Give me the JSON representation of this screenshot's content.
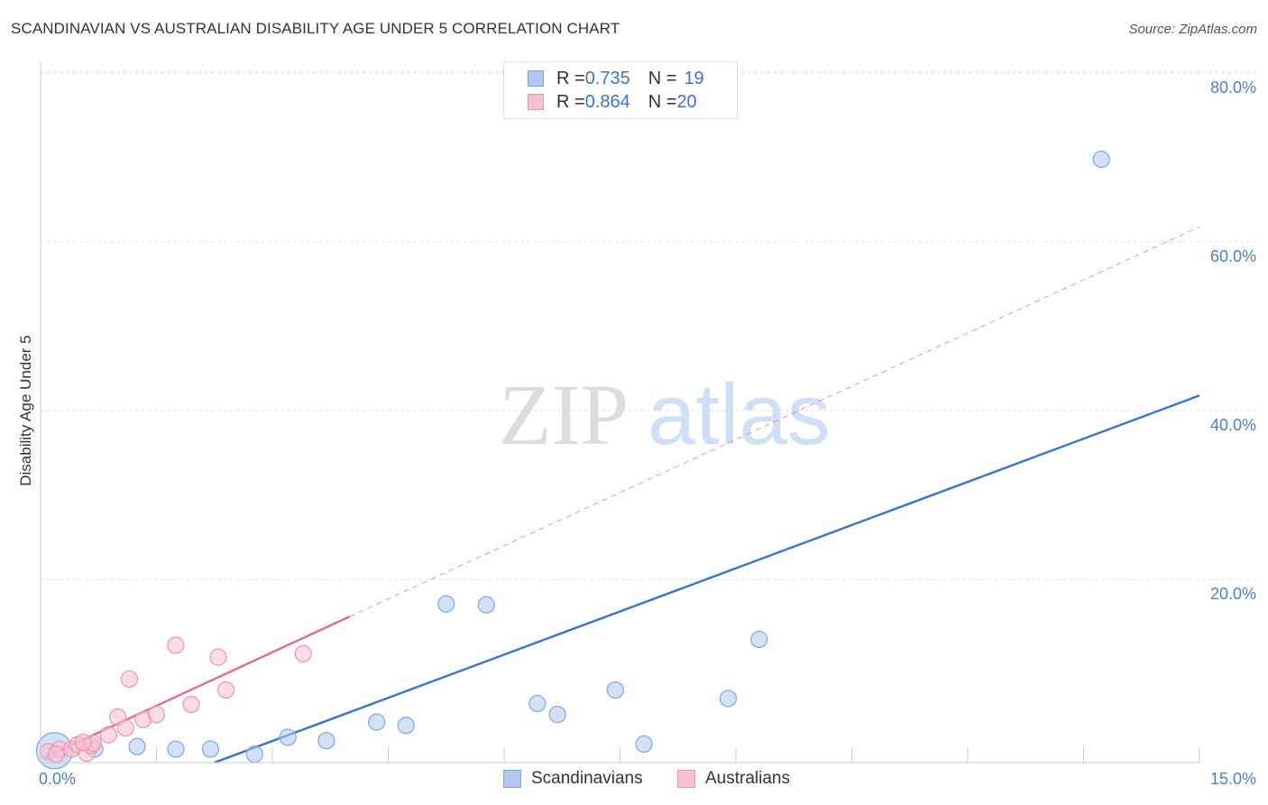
{
  "title": "SCANDINAVIAN VS AUSTRALIAN DISABILITY AGE UNDER 5 CORRELATION CHART",
  "source": "Source: ZipAtlas.com",
  "watermark": {
    "zip": "ZIP",
    "atlas": "atlas"
  },
  "legend": {
    "rows": [
      {
        "r_label": "R = ",
        "r_value": "0.735",
        "n_label": "N = ",
        "n_value": "19",
        "color": "#aec8ef",
        "border": "#7fa6e0"
      },
      {
        "r_label": "R = ",
        "r_value": "0.864",
        "n_label": "N = ",
        "n_value": "20",
        "color": "#f7c0d0",
        "border": "#ee93ad"
      }
    ]
  },
  "bottom_legend": [
    "Scandinavians",
    "Australians"
  ],
  "chart_data": {
    "type": "scatter",
    "ylabel": "Disability Age Under 5",
    "xlim": [
      0,
      15
    ],
    "ylim": [
      0,
      80
    ],
    "x_tick_labels": [
      "0.0%",
      "15.0%"
    ],
    "y_ticks": [
      20,
      40,
      60,
      80
    ],
    "y_tick_labels": [
      "20.0%",
      "40.0%",
      "60.0%",
      "80.0%"
    ],
    "grid": true,
    "legend_position": "top-center",
    "series": [
      {
        "name": "Scandinavians",
        "color": "#aec8ef",
        "stroke": "#7fa6e0",
        "line_color": "#3a74cc",
        "points": [
          [
            0.18,
            1.4,
            20
          ],
          [
            0.7,
            1.6,
            9
          ],
          [
            1.25,
            1.9,
            9
          ],
          [
            1.75,
            1.6,
            9
          ],
          [
            2.2,
            1.6,
            9
          ],
          [
            2.77,
            1.0,
            9
          ],
          [
            3.2,
            3.0,
            9
          ],
          [
            3.7,
            2.6,
            9
          ],
          [
            4.35,
            4.8,
            9
          ],
          [
            4.73,
            4.4,
            9
          ],
          [
            5.25,
            18.8,
            9
          ],
          [
            5.77,
            18.7,
            9
          ],
          [
            6.43,
            7.0,
            9
          ],
          [
            6.69,
            5.7,
            9
          ],
          [
            7.44,
            8.6,
            9
          ],
          [
            7.81,
            2.2,
            9
          ],
          [
            8.9,
            7.6,
            9
          ],
          [
            9.3,
            14.6,
            9
          ],
          [
            13.73,
            71.5,
            9
          ]
        ],
        "fit": {
          "x": [
            2.25,
            15.0
          ],
          "y": [
            0.0,
            43.5
          ],
          "style": "solid"
        }
      },
      {
        "name": "Australians",
        "color": "#f7c0d0",
        "stroke": "#ee93ad",
        "line_color": "#e06a93",
        "points": [
          [
            0.1,
            1.3,
            9
          ],
          [
            0.25,
            1.6,
            9
          ],
          [
            0.4,
            1.6,
            9
          ],
          [
            0.48,
            2.1,
            9
          ],
          [
            0.6,
            1.1,
            9
          ],
          [
            0.65,
            2.0,
            9
          ],
          [
            0.68,
            2.3,
            9
          ],
          [
            0.88,
            3.3,
            9
          ],
          [
            1.0,
            5.4,
            9
          ],
          [
            1.1,
            4.1,
            9
          ],
          [
            1.15,
            9.9,
            9
          ],
          [
            1.33,
            5.1,
            9
          ],
          [
            1.5,
            5.7,
            9
          ],
          [
            1.75,
            13.9,
            9
          ],
          [
            1.95,
            6.9,
            9
          ],
          [
            2.3,
            12.5,
            9
          ],
          [
            2.4,
            8.6,
            9
          ],
          [
            3.4,
            12.9,
            9
          ],
          [
            0.2,
            1.0,
            9
          ],
          [
            0.55,
            2.4,
            9
          ]
        ],
        "fit": {
          "x": [
            0.05,
            4.0
          ],
          "y": [
            0.6,
            17.3
          ],
          "style": "solid"
        },
        "fit_extension": {
          "x": [
            4.0,
            15.0
          ],
          "y": [
            17.3,
            63.5
          ],
          "style": "dashed"
        }
      }
    ]
  }
}
